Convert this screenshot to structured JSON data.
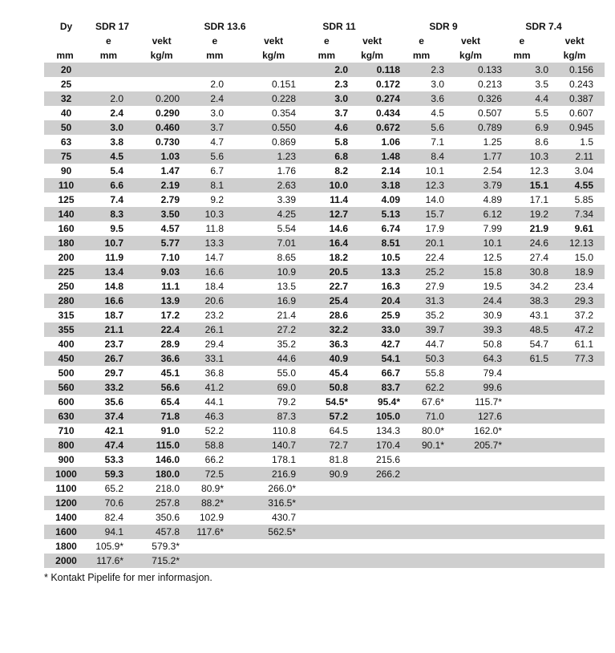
{
  "header": {
    "dn": "Dy",
    "groups": [
      "SDR 17",
      "SDR 13.6",
      "SDR 11",
      "SDR 9",
      "SDR 7.4"
    ],
    "sub": [
      "e",
      "vekt"
    ],
    "units": [
      "mm",
      "mm",
      "kg/m"
    ]
  },
  "rows": [
    {
      "dy": "20",
      "v": [
        "",
        "",
        "",
        "",
        "2.0",
        "0.118",
        "2.3",
        "0.133",
        "3.0",
        "0.156"
      ],
      "b": [
        4,
        5
      ]
    },
    {
      "dy": "25",
      "v": [
        "",
        "",
        "2.0",
        "0.151",
        "2.3",
        "0.172",
        "3.0",
        "0.213",
        "3.5",
        "0.243"
      ],
      "b": [
        4,
        5
      ]
    },
    {
      "dy": "32",
      "v": [
        "2.0",
        "0.200",
        "2.4",
        "0.228",
        "3.0",
        "0.274",
        "3.6",
        "0.326",
        "4.4",
        "0.387"
      ],
      "b": [
        4,
        5
      ]
    },
    {
      "dy": "40",
      "v": [
        "2.4",
        "0.290",
        "3.0",
        "0.354",
        "3.7",
        "0.434",
        "4.5",
        "0.507",
        "5.5",
        "0.607"
      ],
      "b": [
        0,
        1,
        4,
        5
      ]
    },
    {
      "dy": "50",
      "v": [
        "3.0",
        "0.460",
        "3.7",
        "0.550",
        "4.6",
        "0.672",
        "5.6",
        "0.789",
        "6.9",
        "0.945"
      ],
      "b": [
        0,
        1,
        4,
        5
      ]
    },
    {
      "dy": "63",
      "v": [
        "3.8",
        "0.730",
        "4.7",
        "0.869",
        "5.8",
        "1.06",
        "7.1",
        "1.25",
        "8.6",
        "1.5"
      ],
      "b": [
        0,
        1,
        4,
        5
      ]
    },
    {
      "dy": "75",
      "v": [
        "4.5",
        "1.03",
        "5.6",
        "1.23",
        "6.8",
        "1.48",
        "8.4",
        "1.77",
        "10.3",
        "2.11"
      ],
      "b": [
        0,
        1,
        4,
        5
      ]
    },
    {
      "dy": "90",
      "v": [
        "5.4",
        "1.47",
        "6.7",
        "1.76",
        "8.2",
        "2.14",
        "10.1",
        "2.54",
        "12.3",
        "3.04"
      ],
      "b": [
        0,
        1,
        4,
        5
      ]
    },
    {
      "dy": "110",
      "v": [
        "6.6",
        "2.19",
        "8.1",
        "2.63",
        "10.0",
        "3.18",
        "12.3",
        "3.79",
        "15.1",
        "4.55"
      ],
      "b": [
        0,
        1,
        4,
        5,
        8,
        9
      ]
    },
    {
      "dy": "125",
      "v": [
        "7.4",
        "2.79",
        "9.2",
        "3.39",
        "11.4",
        "4.09",
        "14.0",
        "4.89",
        "17.1",
        "5.85"
      ],
      "b": [
        0,
        1,
        4,
        5
      ]
    },
    {
      "dy": "140",
      "v": [
        "8.3",
        "3.50",
        "10.3",
        "4.25",
        "12.7",
        "5.13",
        "15.7",
        "6.12",
        "19.2",
        "7.34"
      ],
      "b": [
        0,
        1,
        4,
        5
      ]
    },
    {
      "dy": "160",
      "v": [
        "9.5",
        "4.57",
        "11.8",
        "5.54",
        "14.6",
        "6.74",
        "17.9",
        "7.99",
        "21.9",
        "9.61"
      ],
      "b": [
        0,
        1,
        4,
        5,
        8,
        9
      ]
    },
    {
      "dy": "180",
      "v": [
        "10.7",
        "5.77",
        "13.3",
        "7.01",
        "16.4",
        "8.51",
        "20.1",
        "10.1",
        "24.6",
        "12.13"
      ],
      "b": [
        0,
        1,
        4,
        5
      ]
    },
    {
      "dy": "200",
      "v": [
        "11.9",
        "7.10",
        "14.7",
        "8.65",
        "18.2",
        "10.5",
        "22.4",
        "12.5",
        "27.4",
        "15.0"
      ],
      "b": [
        0,
        1,
        4,
        5
      ]
    },
    {
      "dy": "225",
      "v": [
        "13.4",
        "9.03",
        "16.6",
        "10.9",
        "20.5",
        "13.3",
        "25.2",
        "15.8",
        "30.8",
        "18.9"
      ],
      "b": [
        0,
        1,
        4,
        5
      ]
    },
    {
      "dy": "250",
      "v": [
        "14.8",
        "11.1",
        "18.4",
        "13.5",
        "22.7",
        "16.3",
        "27.9",
        "19.5",
        "34.2",
        "23.4"
      ],
      "b": [
        0,
        1,
        4,
        5
      ]
    },
    {
      "dy": "280",
      "v": [
        "16.6",
        "13.9",
        "20.6",
        "16.9",
        "25.4",
        "20.4",
        "31.3",
        "24.4",
        "38.3",
        "29.3"
      ],
      "b": [
        0,
        1,
        4,
        5
      ]
    },
    {
      "dy": "315",
      "v": [
        "18.7",
        "17.2",
        "23.2",
        "21.4",
        "28.6",
        "25.9",
        "35.2",
        "30.9",
        "43.1",
        "37.2"
      ],
      "b": [
        0,
        1,
        4,
        5
      ]
    },
    {
      "dy": "355",
      "v": [
        "21.1",
        "22.4",
        "26.1",
        "27.2",
        "32.2",
        "33.0",
        "39.7",
        "39.3",
        "48.5",
        "47.2"
      ],
      "b": [
        0,
        1,
        4,
        5
      ]
    },
    {
      "dy": "400",
      "v": [
        "23.7",
        "28.9",
        "29.4",
        "35.2",
        "36.3",
        "42.7",
        "44.7",
        "50.8",
        "54.7",
        "61.1"
      ],
      "b": [
        0,
        1,
        4,
        5
      ]
    },
    {
      "dy": "450",
      "v": [
        "26.7",
        "36.6",
        "33.1",
        "44.6",
        "40.9",
        "54.1",
        "50.3",
        "64.3",
        "61.5",
        "77.3"
      ],
      "b": [
        0,
        1,
        4,
        5
      ]
    },
    {
      "dy": "500",
      "v": [
        "29.7",
        "45.1",
        "36.8",
        "55.0",
        "45.4",
        "66.7",
        "55.8",
        "79.4",
        "",
        ""
      ],
      "b": [
        0,
        1,
        4,
        5
      ]
    },
    {
      "dy": "560",
      "v": [
        "33.2",
        "56.6",
        "41.2",
        "69.0",
        "50.8",
        "83.7",
        "62.2",
        "99.6",
        "",
        ""
      ],
      "b": [
        0,
        1,
        4,
        5
      ]
    },
    {
      "dy": "600",
      "v": [
        "35.6",
        "65.4",
        "44.1",
        "79.2",
        "54.5*",
        "95.4*",
        "67.6*",
        "115.7*",
        "",
        ""
      ],
      "b": [
        0,
        1,
        4,
        5
      ]
    },
    {
      "dy": "630",
      "v": [
        "37.4",
        "71.8",
        "46.3",
        "87.3",
        "57.2",
        "105.0",
        "71.0",
        "127.6",
        "",
        ""
      ],
      "b": [
        0,
        1,
        4,
        5
      ]
    },
    {
      "dy": "710",
      "v": [
        "42.1",
        "91.0",
        "52.2",
        "110.8",
        "64.5",
        "134.3",
        "80.0*",
        "162.0*",
        "",
        ""
      ],
      "b": [
        0,
        1
      ]
    },
    {
      "dy": "800",
      "v": [
        "47.4",
        "115.0",
        "58.8",
        "140.7",
        "72.7",
        "170.4",
        "90.1*",
        "205.7*",
        "",
        ""
      ],
      "b": [
        0,
        1
      ]
    },
    {
      "dy": "900",
      "v": [
        "53.3",
        "146.0",
        "66.2",
        "178.1",
        "81.8",
        "215.6",
        "",
        "",
        "",
        ""
      ],
      "b": [
        0,
        1
      ]
    },
    {
      "dy": "1000",
      "v": [
        "59.3",
        "180.0",
        "72.5",
        "216.9",
        "90.9",
        "266.2",
        "",
        "",
        "",
        ""
      ],
      "b": [
        0,
        1
      ]
    },
    {
      "dy": "1100",
      "v": [
        "65.2",
        "218.0",
        "80.9*",
        "266.0*",
        "",
        "",
        "",
        "",
        "",
        ""
      ],
      "b": []
    },
    {
      "dy": "1200",
      "v": [
        "70.6",
        "257.8",
        "88.2*",
        "316.5*",
        "",
        "",
        "",
        "",
        "",
        ""
      ],
      "b": []
    },
    {
      "dy": "1400",
      "v": [
        "82.4",
        "350.6",
        "102.9",
        "430.7",
        "",
        "",
        "",
        "",
        "",
        ""
      ],
      "b": []
    },
    {
      "dy": "1600",
      "v": [
        "94.1",
        "457.8",
        "117.6*",
        "562.5*",
        "",
        "",
        "",
        "",
        "",
        ""
      ],
      "b": []
    },
    {
      "dy": "1800",
      "v": [
        "105.9*",
        "579.3*",
        "",
        "",
        "",
        "",
        "",
        "",
        "",
        ""
      ],
      "b": []
    },
    {
      "dy": "2000",
      "v": [
        "117.6*",
        "715.2*",
        "",
        "",
        "",
        "",
        "",
        "",
        "",
        ""
      ],
      "b": []
    }
  ],
  "footnote": "* Kontakt Pipelife for mer informasjon.",
  "colors": {
    "shade": "#cfcfcf"
  }
}
